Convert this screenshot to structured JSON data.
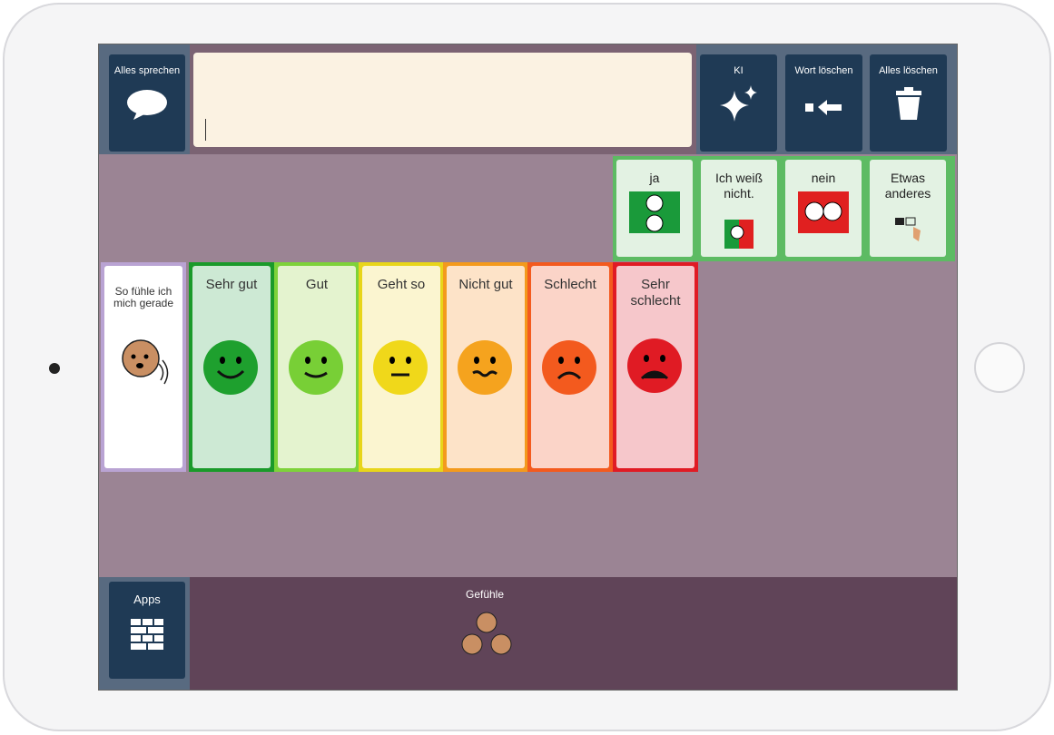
{
  "top_bar": {
    "speak_button": "Alles sprechen",
    "buttons": [
      "KI",
      "Wort löschen",
      "Alles löschen"
    ]
  },
  "quick_answers": [
    "ja",
    "Ich weiß nicht.",
    "nein",
    "Etwas anderes"
  ],
  "feelings": {
    "intro": "So fühle ich mich gerade",
    "options": [
      "Sehr gut",
      "Gut",
      "Geht so",
      "Nicht gut",
      "Schlecht",
      "Sehr schlecht"
    ]
  },
  "bottom_bar": {
    "apps": "Apps",
    "folder": "Gefühle"
  }
}
